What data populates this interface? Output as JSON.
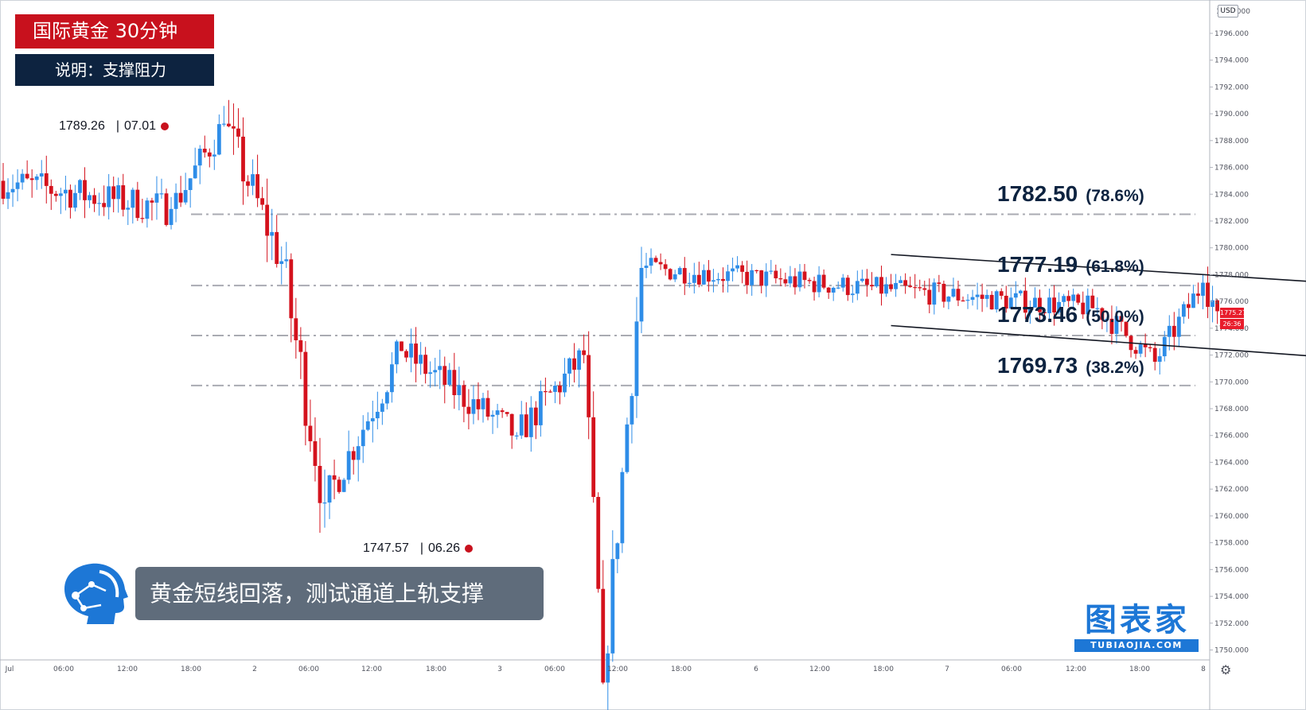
{
  "header": {
    "title": "国际黄金  30分钟",
    "subtitle": "说明：支撑阻力"
  },
  "caption": "黄金短线回落，测试通道上轨支撑",
  "levels": [
    {
      "price": "1782.50",
      "pct": "(78.6%)",
      "value": 1782.5
    },
    {
      "price": "1777.19",
      "pct": "(61.8%)",
      "value": 1777.19
    },
    {
      "price": "1773.46",
      "pct": "(50.0%)",
      "value": 1773.46
    },
    {
      "price": "1769.73",
      "pct": "(38.2%)",
      "value": 1769.73
    }
  ],
  "extremes": {
    "high": {
      "price": "1789.26",
      "date": "07.01",
      "sep": "|"
    },
    "low": {
      "price": "1747.57",
      "date": "06.26",
      "sep": "|"
    }
  },
  "price_axis": {
    "currency": "USD",
    "current_price": "1775.271",
    "countdown": "26:36",
    "ticks": [
      "1796.000",
      "1794.000",
      "1792.000",
      "1790.000",
      "1788.000",
      "1786.000",
      "1784.000",
      "1782.000",
      "1780.000",
      "1778.000",
      "1776.000",
      "1774.000",
      "1772.000",
      "1770.000",
      "1768.000",
      "1766.000",
      "1764.000",
      "1762.000",
      "1760.000",
      "1758.000",
      "1756.000",
      "1754.000",
      "1752.000",
      "1750.000"
    ],
    "top_tick": "1798.000"
  },
  "time_axis": {
    "ticks": [
      "Jul",
      "06:00",
      "12:00",
      "18:00",
      "2",
      "06:00",
      "12:00",
      "18:00",
      "3",
      "06:00",
      "12:00",
      "18:00",
      "6",
      "12:00",
      "18:00",
      "7",
      "06:00",
      "12:00",
      "18:00",
      "8"
    ]
  },
  "brand": {
    "name": "图表家",
    "url": "TUBIAOJIA.COM"
  },
  "colors": {
    "up": "#2e8de8",
    "down": "#d4121d",
    "title_bg": "#c8111d",
    "subtitle_bg": "#0d2340",
    "level_text": "#0d2340",
    "brand": "#1d77d6"
  },
  "icons": {
    "settings": "gear-icon",
    "logo": "robot-head-icon"
  },
  "chart_data": {
    "type": "candlestick",
    "timeframe": "30分钟",
    "ylim": [
      1749.5,
      1798.0
    ],
    "segments": [
      {
        "start": 1785.0,
        "end": 1782.9,
        "n": 36,
        "vol": 1.6
      },
      {
        "start": 1782.9,
        "end": 1789.26,
        "n": 11,
        "vol": 1.6
      },
      {
        "start": 1789.26,
        "end": 1779.0,
        "n": 12,
        "vol": 2.2
      },
      {
        "start": 1779.0,
        "end": 1761.0,
        "n": 9,
        "vol": 3.0
      },
      {
        "start": 1761.0,
        "end": 1772.3,
        "n": 16,
        "vol": 1.8
      },
      {
        "start": 1772.3,
        "end": 1766.0,
        "n": 24,
        "vol": 1.6
      },
      {
        "start": 1766.0,
        "end": 1772.0,
        "n": 14,
        "vol": 1.6
      },
      {
        "start": 1772.0,
        "end": 1747.57,
        "n": 4,
        "vol": 2.5
      },
      {
        "start": 1747.57,
        "end": 1778.5,
        "n": 8,
        "vol": 2.5
      },
      {
        "start": 1778.5,
        "end": 1775.5,
        "n": 95,
        "vol": 1.1
      },
      {
        "start": 1775.5,
        "end": 1771.5,
        "n": 12,
        "vol": 1.2
      },
      {
        "start": 1771.5,
        "end": 1777.4,
        "n": 10,
        "vol": 1.2
      },
      {
        "start": 1777.4,
        "end": 1775.27,
        "n": 3,
        "vol": 1.4
      }
    ],
    "channel": {
      "upper": {
        "from": {
          "bar": 185,
          "price": 1779.5
        },
        "to": {
          "bar": 385,
          "price": 1774.8
        }
      },
      "lower": {
        "from": {
          "bar": 185,
          "price": 1774.2
        },
        "to": {
          "bar": 385,
          "price": 1768.9
        }
      }
    }
  }
}
